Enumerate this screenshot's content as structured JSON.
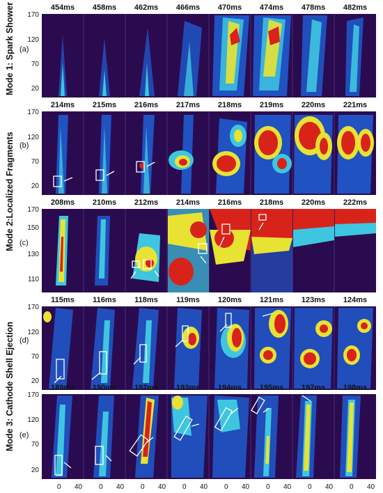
{
  "modes": [
    {
      "title": "Mode 1: Spark Shower"
    },
    {
      "title": "Mode 2:Localized Fragments"
    },
    {
      "title": "Mode 3: Cathode Shell Ejection"
    }
  ],
  "rows": [
    {
      "letter": "(a)",
      "times": [
        "454ms",
        "458ms",
        "462ms",
        "466ms",
        "470ms",
        "474ms",
        "478ms",
        "482ms"
      ],
      "yticks": [
        "170",
        "120",
        "70",
        "20"
      ]
    },
    {
      "letter": "(b)",
      "times": [
        "214ms",
        "215ms",
        "216ms",
        "217ms",
        "218ms",
        "219ms",
        "220ms",
        "221ms"
      ],
      "yticks": [
        "170",
        "120",
        "70",
        "20"
      ]
    },
    {
      "letter": "(c)",
      "times": [
        "208ms",
        "210ms",
        "212ms",
        "214ms",
        "216ms",
        "218ms",
        "220ms",
        "222ms"
      ],
      "yticks": [
        "170",
        "150",
        "130",
        "110"
      ]
    },
    {
      "letter": "(d)",
      "times": [
        "115ms",
        "116ms",
        "118ms",
        "119ms",
        "120ms",
        "121ms",
        "123ms",
        "124ms"
      ],
      "yticks": [
        "170",
        "120",
        "70",
        "20"
      ]
    },
    {
      "letter": "(e)",
      "times": [
        "189ms",
        "190ms",
        "192ms",
        "193ms",
        "194ms",
        "195ms",
        "197ms",
        "198ms"
      ],
      "yticks": [
        "170",
        "120",
        "70",
        "20"
      ]
    }
  ],
  "xticks": [
    "0",
    "40",
    "0",
    "40",
    "0",
    "40",
    "0",
    "40",
    "0",
    "40",
    "0",
    "40",
    "0",
    "40",
    "0",
    "40"
  ],
  "colors": {
    "background": "#2b0b4f",
    "low": "#1f5fd6",
    "mid": "#3ec6e0",
    "high": "#e8e233",
    "hot": "#d8231a",
    "box": "#ffffff"
  }
}
